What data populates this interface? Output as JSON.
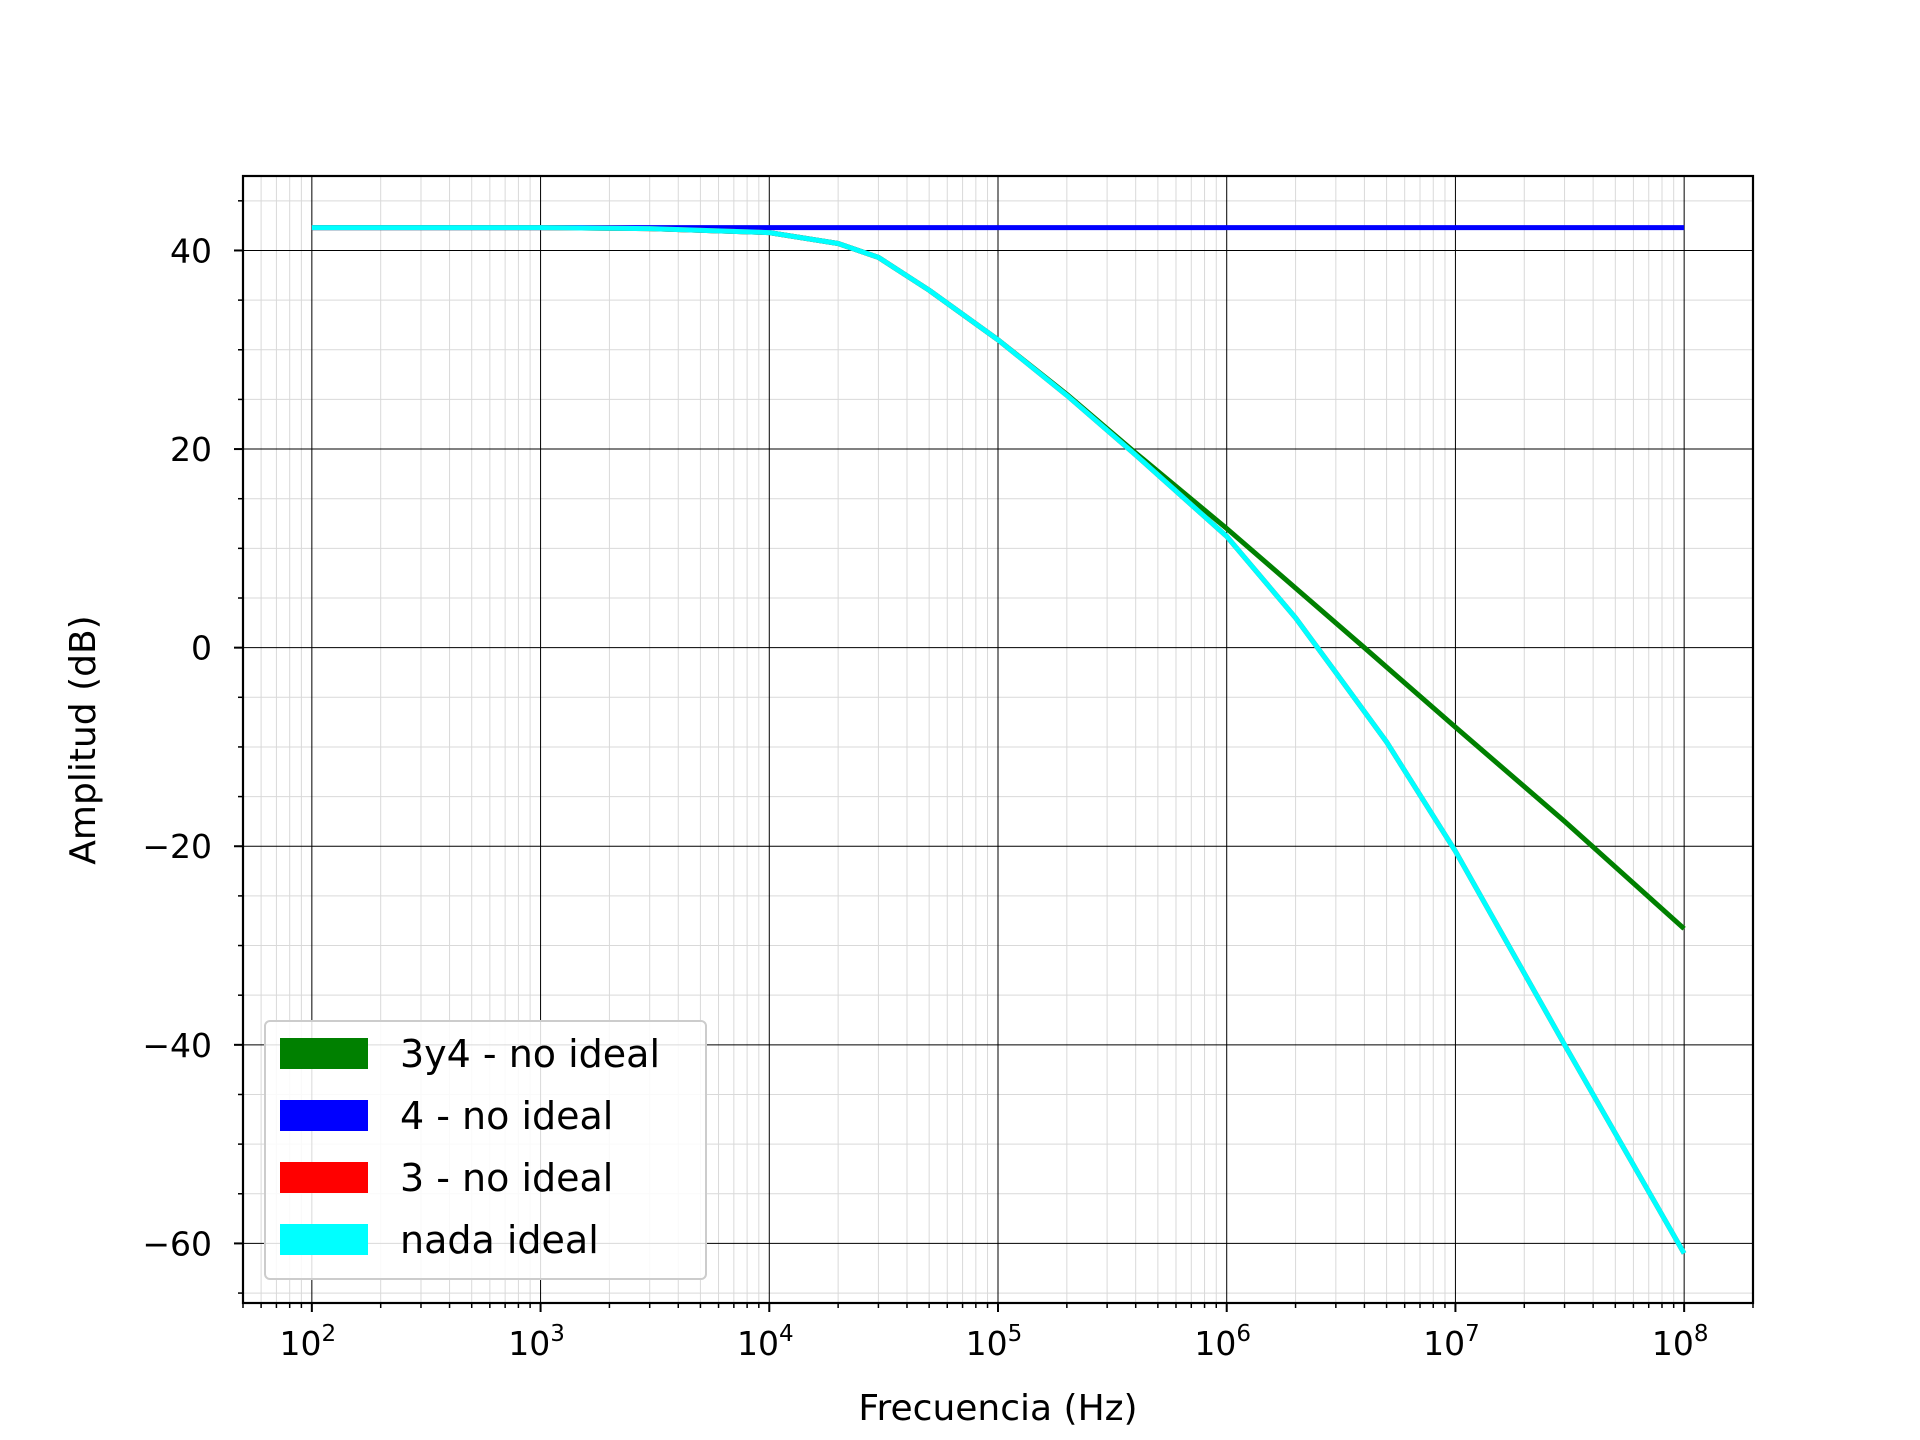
{
  "chart_data": {
    "type": "line",
    "title": "",
    "xlabel": "Frecuencia (Hz)",
    "ylabel": "Amplitud (dB)",
    "xscale": "log",
    "xlim": [
      50,
      200000000
    ],
    "ylim": [
      -66,
      47.5
    ],
    "x_ticks": [
      {
        "value": 100,
        "base": "10",
        "exp": "2"
      },
      {
        "value": 1000,
        "base": "10",
        "exp": "3"
      },
      {
        "value": 10000,
        "base": "10",
        "exp": "4"
      },
      {
        "value": 100000,
        "base": "10",
        "exp": "5"
      },
      {
        "value": 1000000,
        "base": "10",
        "exp": "6"
      },
      {
        "value": 10000000,
        "base": "10",
        "exp": "7"
      },
      {
        "value": 100000000,
        "base": "10",
        "exp": "8"
      }
    ],
    "y_ticks": [
      {
        "value": 40,
        "label": "40"
      },
      {
        "value": 20,
        "label": "20"
      },
      {
        "value": 0,
        "label": "0"
      },
      {
        "value": -20,
        "label": "−20"
      },
      {
        "value": -40,
        "label": "−40"
      },
      {
        "value": -60,
        "label": "−60"
      }
    ],
    "grid": "major and minor",
    "legend_position": "lower-left",
    "series": [
      {
        "name": "3y4 - no ideal",
        "color": "#008000",
        "x": [
          100,
          1000,
          3000,
          10000,
          20000,
          30000,
          50000,
          100000,
          200000,
          400000,
          1000000,
          2000000,
          4000000,
          10000000,
          30000000,
          100000000
        ],
        "y": [
          42.3,
          42.3,
          42.2,
          41.8,
          40.7,
          39.3,
          36.0,
          31.0,
          25.5,
          19.6,
          12.0,
          6.0,
          0.0,
          -8.0,
          -17.5,
          -28.3
        ]
      },
      {
        "name": "4 - no ideal",
        "color": "#0000ff",
        "x": [
          100,
          1000,
          10000,
          100000,
          1000000,
          10000000,
          100000000
        ],
        "y": [
          42.3,
          42.3,
          42.3,
          42.3,
          42.3,
          42.3,
          42.3
        ]
      },
      {
        "name": "3 - no ideal",
        "color": "#ff0000",
        "x": [
          100,
          1000,
          3000,
          10000,
          20000,
          30000,
          50000,
          100000,
          200000,
          400000,
          1000000,
          2000000,
          3000000,
          5000000,
          10000000,
          30000000,
          100000000
        ],
        "y": [
          42.3,
          42.3,
          42.2,
          41.8,
          40.7,
          39.3,
          36.0,
          31.0,
          25.4,
          19.4,
          11.2,
          3.0,
          -2.5,
          -9.5,
          -20.5,
          -40.0,
          -61.0
        ]
      },
      {
        "name": "nada ideal",
        "color": "#00ffff",
        "x": [
          100,
          1000,
          3000,
          10000,
          20000,
          30000,
          50000,
          100000,
          200000,
          400000,
          1000000,
          2000000,
          3000000,
          5000000,
          10000000,
          30000000,
          100000000
        ],
        "y": [
          42.3,
          42.3,
          42.2,
          41.8,
          40.7,
          39.3,
          36.0,
          31.0,
          25.4,
          19.4,
          11.2,
          3.0,
          -2.5,
          -9.5,
          -20.5,
          -40.0,
          -61.0
        ]
      }
    ]
  }
}
